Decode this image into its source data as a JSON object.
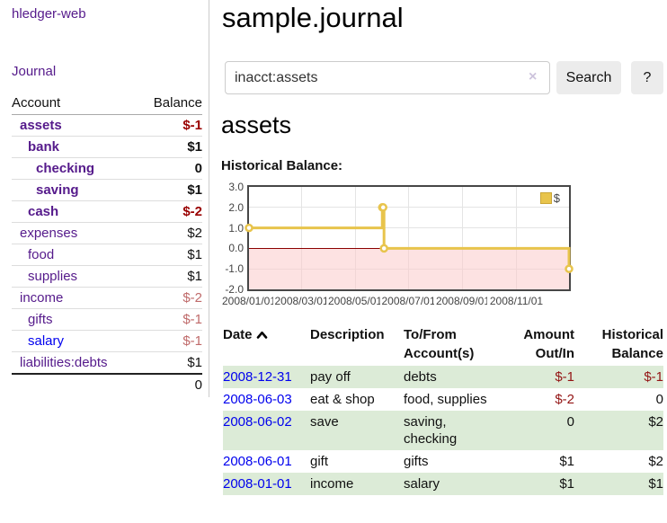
{
  "app": {
    "title": "hledger-web"
  },
  "nav": {
    "journal_label": "Journal"
  },
  "sidebar": {
    "col_account": "Account",
    "col_balance": "Balance",
    "accounts": [
      {
        "name": "assets",
        "balance": "$-1"
      },
      {
        "name": "bank",
        "balance": "$1"
      },
      {
        "name": "checking",
        "balance": "0"
      },
      {
        "name": "saving",
        "balance": "$1"
      },
      {
        "name": "cash",
        "balance": "$-2"
      },
      {
        "name": "expenses",
        "balance": "$2"
      },
      {
        "name": "food",
        "balance": "$1"
      },
      {
        "name": "supplies",
        "balance": "$1"
      },
      {
        "name": "income",
        "balance": "$-2"
      },
      {
        "name": "gifts",
        "balance": "$-1"
      },
      {
        "name": "salary",
        "balance": "$-1"
      },
      {
        "name": "liabilities:debts",
        "balance": "$1"
      }
    ],
    "total": "0"
  },
  "main": {
    "title": "sample.journal",
    "search": {
      "query": "inacct:assets",
      "clear_icon": "×",
      "button_label": "Search",
      "help_label": "?"
    },
    "account_heading": "assets",
    "chart_label": "Historical Balance:"
  },
  "chart_data": {
    "type": "line",
    "title": "Historical Balance:",
    "step": true,
    "legend": "$",
    "legend_position": "top-right",
    "grid": true,
    "ylim": [
      -2.0,
      3.0
    ],
    "xlim_days": [
      0,
      365
    ],
    "y_ticks": [
      "3.0",
      "2.0",
      "1.0",
      "0.0",
      "-1.0",
      "-2.0"
    ],
    "y_tick_values": [
      3,
      2,
      1,
      0,
      -1,
      -2
    ],
    "x_ticks": [
      {
        "label": "2008/01/01",
        "day": 0
      },
      {
        "label": "2008/03/01",
        "day": 60
      },
      {
        "label": "2008/05/01",
        "day": 121
      },
      {
        "label": "2008/07/01",
        "day": 182
      },
      {
        "label": "2008/09/01",
        "day": 244
      },
      {
        "label": "2008/11/01",
        "day": 305
      }
    ],
    "series": [
      {
        "name": "$",
        "points": [
          {
            "date": "2008-01-01",
            "day": 0,
            "value": 1
          },
          {
            "date": "2008-06-01",
            "day": 152,
            "value": 2
          },
          {
            "date": "2008-06-02",
            "day": 153,
            "value": 2
          },
          {
            "date": "2008-06-03",
            "day": 154,
            "value": 0
          },
          {
            "date": "2008-12-31",
            "day": 365,
            "value": -1
          }
        ]
      }
    ],
    "colors": {
      "line": "#e8c44c",
      "marker_fill": "#ffffff",
      "negative_region": "#fccbcb",
      "zero_line": "#8b0000",
      "border": "#474747"
    }
  },
  "register": {
    "headers": {
      "date": "Date",
      "description": "Description",
      "tofrom_line1": "To/From",
      "tofrom_line2": "Account(s)",
      "amount_line1": "Amount",
      "amount_line2": "Out/In",
      "hist_line1": "Historical",
      "hist_line2": "Balance"
    },
    "rows": [
      {
        "date": "2008-12-31",
        "description": "pay off",
        "accounts": "debts",
        "amount": "$-1",
        "balance": "$-1"
      },
      {
        "date": "2008-06-03",
        "description": "eat & shop",
        "accounts": "food, supplies",
        "amount": "$-2",
        "balance": "0"
      },
      {
        "date": "2008-06-02",
        "description": "save",
        "accounts": "saving, checking",
        "amount": "0",
        "balance": "$2"
      },
      {
        "date": "2008-06-01",
        "description": "gift",
        "accounts": "gifts",
        "amount": "$1",
        "balance": "$2"
      },
      {
        "date": "2008-01-01",
        "description": "income",
        "accounts": "salary",
        "amount": "$1",
        "balance": "$1"
      }
    ]
  }
}
